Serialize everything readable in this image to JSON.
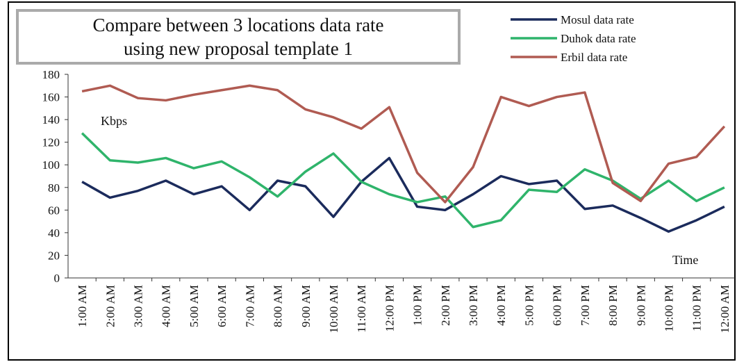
{
  "chart_data": {
    "type": "line",
    "title": "Compare between 3 locations data rate using new proposal template 1",
    "title_lines": [
      "Compare between 3 locations data rate",
      "using new proposal template 1"
    ],
    "y_label": "Kbps",
    "x_label": "Time",
    "categories": [
      "1:00 AM",
      "2:00 AM",
      "3:00 AM",
      "4:00 AM",
      "5:00 AM",
      "6:00 AM",
      "7:00 AM",
      "8:00 AM",
      "9:00 AM",
      "10:00 AM",
      "11:00 AM",
      "12:00 PM",
      "1:00 PM",
      "2:00 PM",
      "3:00 PM",
      "4:00 PM",
      "5:00 PM",
      "6:00 PM",
      "7:00 PM",
      "8:00 PM",
      "9:00 PM",
      "10:00 PM",
      "11:00 PM",
      "12:00 AM"
    ],
    "series": [
      {
        "name": "Mosul data rate",
        "color": "#1b2b5c",
        "values": [
          85,
          71,
          77,
          86,
          74,
          81,
          60,
          86,
          81,
          54,
          85,
          106,
          63,
          60,
          74,
          90,
          83,
          86,
          61,
          64,
          53,
          41,
          51,
          63
        ]
      },
      {
        "name": "Duhok data rate",
        "color": "#2fb46b",
        "values": [
          128,
          104,
          102,
          106,
          97,
          103,
          89,
          72,
          94,
          110,
          85,
          74,
          67,
          72,
          45,
          51,
          78,
          76,
          96,
          86,
          70,
          86,
          68,
          80
        ]
      },
      {
        "name": "Erbil data rate",
        "color": "#b05b52",
        "values": [
          165,
          170,
          159,
          157,
          162,
          166,
          170,
          166,
          149,
          142,
          132,
          151,
          93,
          67,
          98,
          160,
          152,
          160,
          164,
          84,
          68,
          101,
          107,
          134
        ]
      }
    ],
    "ylim": [
      0,
      180
    ],
    "yticks": [
      0,
      20,
      40,
      60,
      80,
      100,
      120,
      140,
      160,
      180
    ],
    "grid": false
  }
}
